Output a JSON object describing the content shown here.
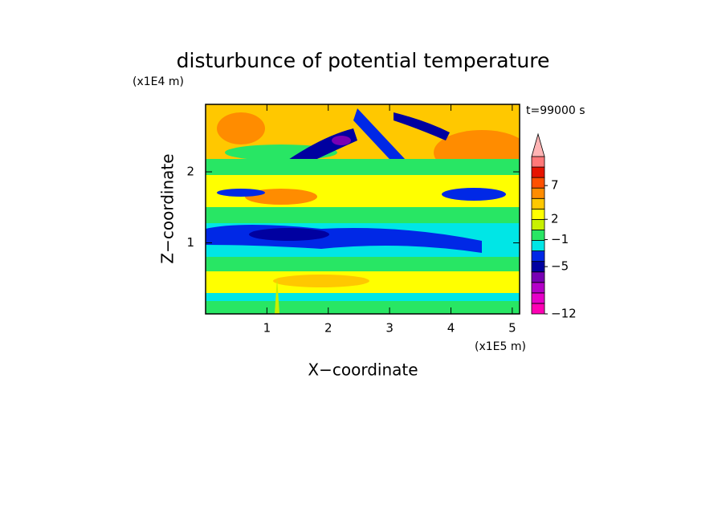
{
  "chart_data": {
    "type": "contour",
    "title": "disturbunce of potential temperature",
    "x_label": "X−coordinate",
    "y_label": "Z−coordinate",
    "x_unit": "(x1E5 m)",
    "y_unit": "(x1E4 m)",
    "annotation": "t=99000 s",
    "xlim": [
      0,
      5.12
    ],
    "ylim": [
      0,
      2.95
    ],
    "xticks": [
      1,
      2,
      3,
      4,
      5
    ],
    "yticks": [
      1,
      2
    ],
    "colorbar": {
      "lim": [
        -12,
        11.3
      ],
      "colors": [
        "#ff00b4",
        "#e600c8",
        "#b400c8",
        "#7800b4",
        "#0000a0",
        "#0028e6",
        "#00e6e6",
        "#28e664",
        "#c8f000",
        "#ffff00",
        "#ffc800",
        "#ff8c00",
        "#ff5000",
        "#e61400",
        "#ff7878",
        "#ffb4b4"
      ],
      "ticks": [
        {
          "value": -12,
          "label": "−12"
        },
        {
          "value": -5,
          "label": "−5"
        },
        {
          "value": -1,
          "label": "−1"
        },
        2,
        7
      ]
    }
  }
}
